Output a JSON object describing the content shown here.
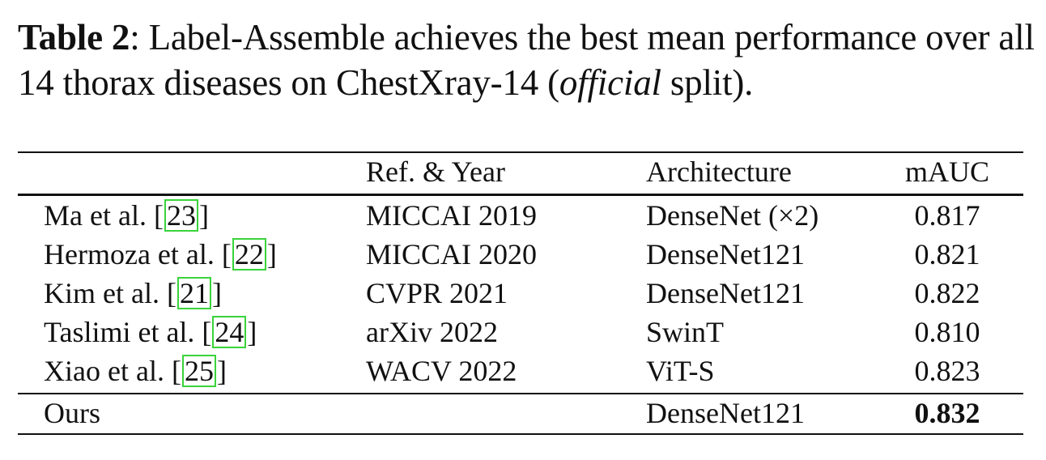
{
  "caption": {
    "label": "Table 2",
    "part1": ": Label-Assemble achieves the best mean performance over all 14 thorax diseases on ChestXray-14 (",
    "italic": "official",
    "part2": " split)."
  },
  "table": {
    "headers": {
      "method": "",
      "ref_year": "Ref. & Year",
      "architecture": "Architecture",
      "mauc": "mAUC"
    },
    "rows": [
      {
        "method": "Ma et al. [",
        "cite": "23",
        "method_end": "]",
        "ref_year": "MICCAI 2019",
        "architecture": "DenseNet (×2)",
        "mauc": "0.817"
      },
      {
        "method": "Hermoza et al. [",
        "cite": "22",
        "method_end": "]",
        "ref_year": "MICCAI 2020",
        "architecture": "DenseNet121",
        "mauc": "0.821"
      },
      {
        "method": "Kim et al. [",
        "cite": "21",
        "method_end": "]",
        "ref_year": "CVPR 2021",
        "architecture": "DenseNet121",
        "mauc": "0.822"
      },
      {
        "method": "Taslimi et al. [",
        "cite": "24",
        "method_end": "]",
        "ref_year": "arXiv 2022",
        "architecture": "SwinT",
        "mauc": "0.810"
      },
      {
        "method": "Xiao et al. [",
        "cite": "25",
        "method_end": "]",
        "ref_year": "WACV 2022",
        "architecture": "ViT-S",
        "mauc": "0.823"
      }
    ],
    "ours": {
      "method": "Ours",
      "ref_year": "",
      "architecture": "DenseNet121",
      "mauc": "0.832"
    }
  },
  "colors": {
    "citation_box": "#3ad33a",
    "text": "#111111"
  }
}
